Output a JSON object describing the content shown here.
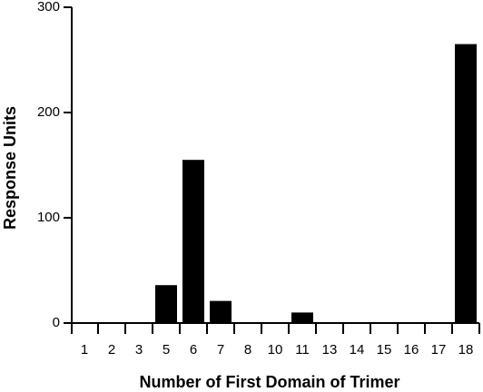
{
  "chart_data": {
    "type": "bar",
    "x_label": "Number of First Domain of Trimer",
    "y_label": "Response Units",
    "categories": [
      "1",
      "2",
      "3",
      "5",
      "6",
      "7",
      "8",
      "10",
      "11",
      "13",
      "14",
      "15",
      "16",
      "17",
      "18"
    ],
    "values": [
      0,
      0,
      0,
      36,
      155,
      21,
      0,
      0,
      10,
      0,
      0,
      0,
      0,
      0,
      265
    ],
    "color": "#000000",
    "ylim": [
      0,
      300
    ],
    "yticks": [
      0,
      100,
      200,
      300
    ],
    "grid": false
  }
}
